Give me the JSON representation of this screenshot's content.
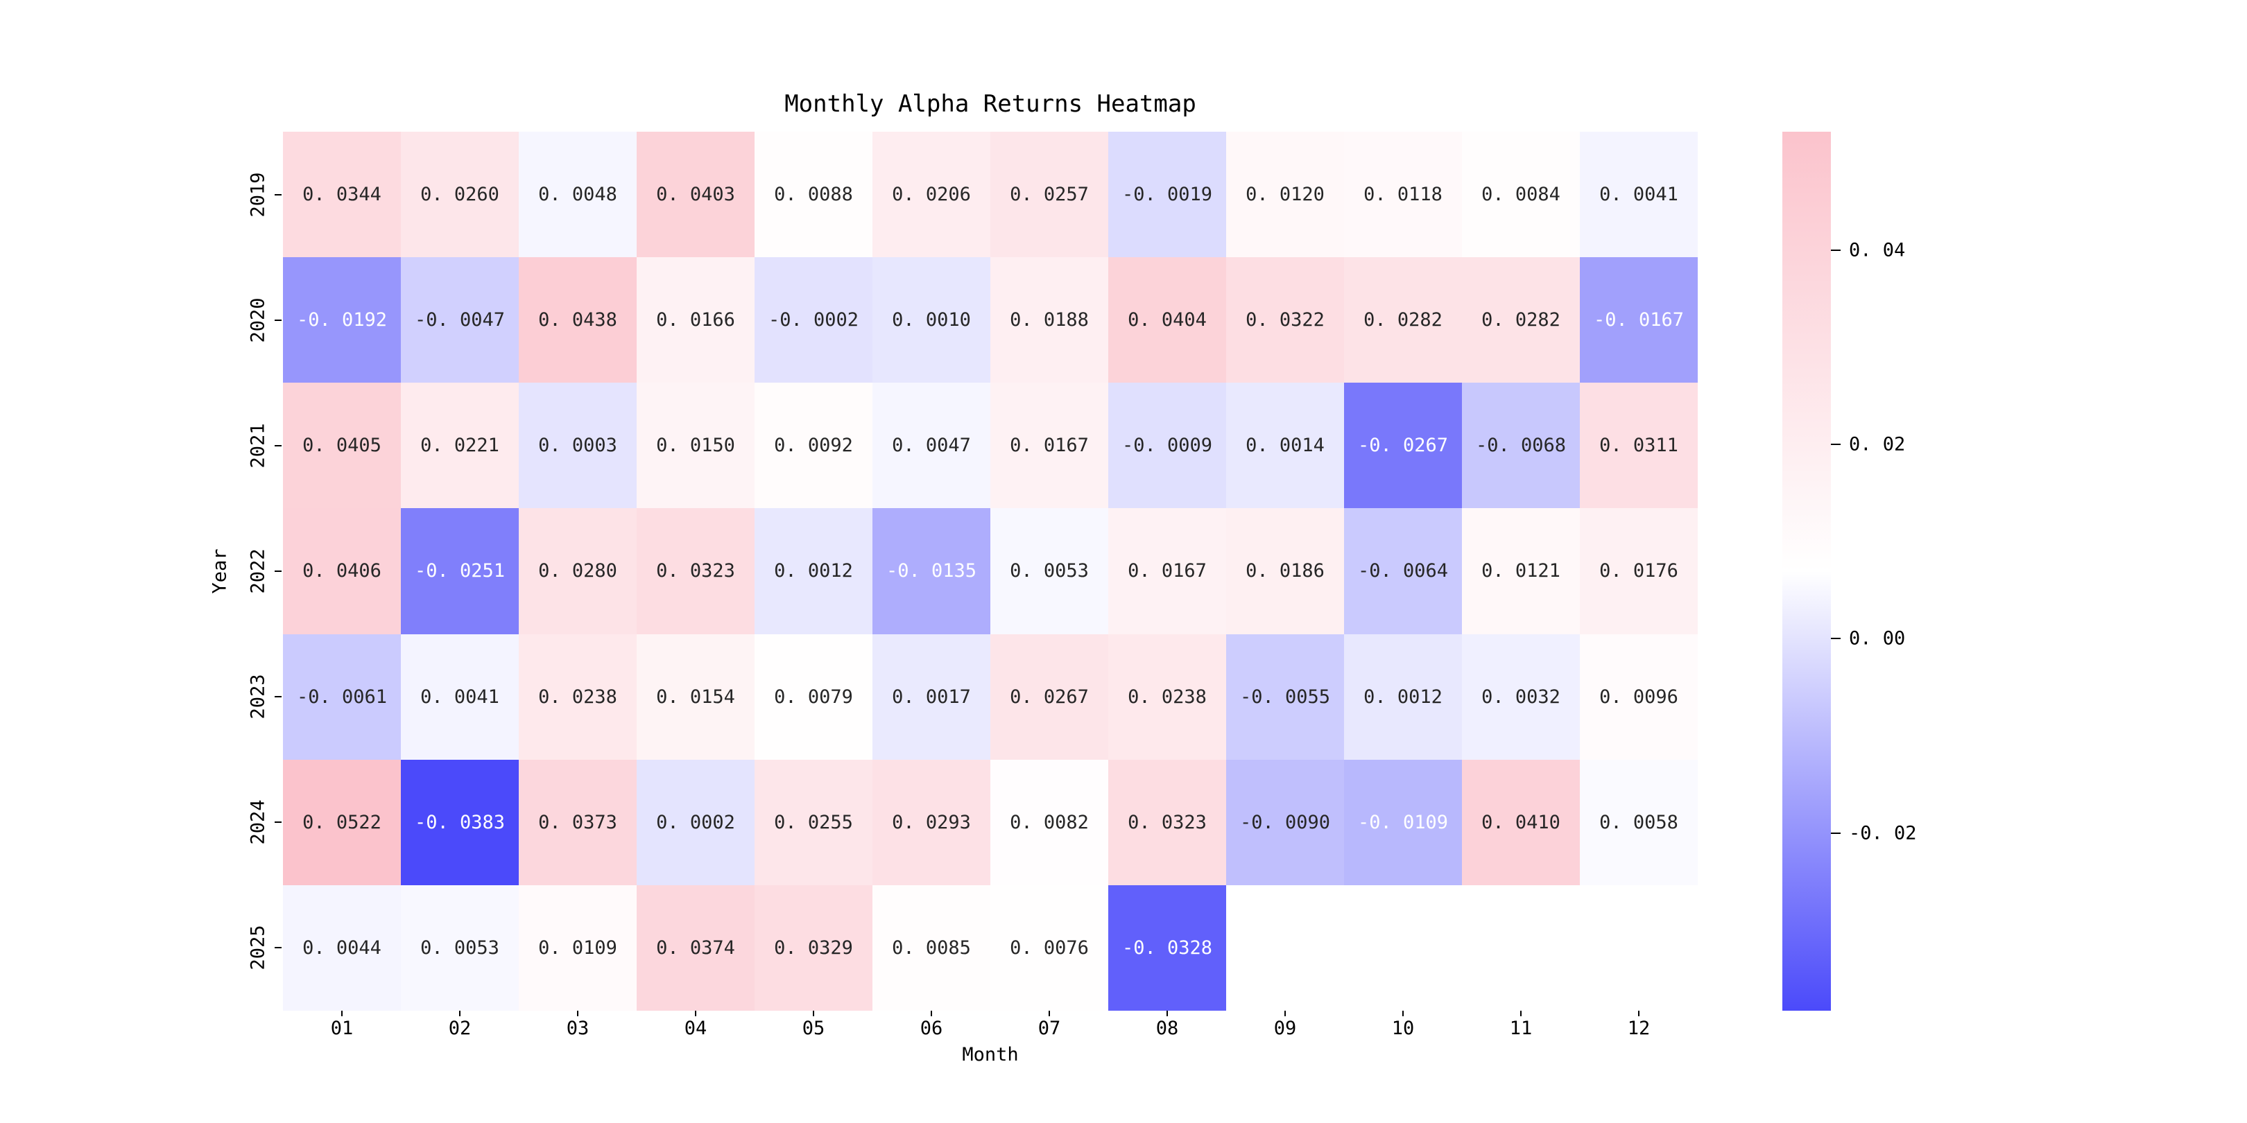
{
  "figure": {
    "title": "Monthly Alpha Returns Heatmap"
  },
  "chart_data": {
    "type": "heatmap",
    "title": "Monthly Alpha Returns Heatmap",
    "xlabel": "Month",
    "ylabel": "Year",
    "x_categories": [
      "01",
      "02",
      "03",
      "04",
      "05",
      "06",
      "07",
      "08",
      "09",
      "10",
      "11",
      "12"
    ],
    "y_categories": [
      "2019",
      "2020",
      "2021",
      "2022",
      "2023",
      "2024",
      "2025"
    ],
    "matrix": [
      [
        0.0344,
        0.026,
        0.0048,
        0.0403,
        0.0088,
        0.0206,
        0.0257,
        -0.0019,
        0.012,
        0.0118,
        0.0084,
        0.0041
      ],
      [
        -0.0192,
        -0.0047,
        0.0438,
        0.0166,
        -0.0002,
        0.001,
        0.0188,
        0.0404,
        0.0322,
        0.0282,
        0.0282,
        -0.0167
      ],
      [
        0.0405,
        0.0221,
        0.0003,
        0.015,
        0.0092,
        0.0047,
        0.0167,
        -0.0009,
        0.0014,
        -0.0267,
        -0.0068,
        0.0311
      ],
      [
        0.0406,
        -0.0251,
        0.028,
        0.0323,
        0.0012,
        -0.0135,
        0.0053,
        0.0167,
        0.0186,
        -0.0064,
        0.0121,
        0.0176
      ],
      [
        -0.0061,
        0.0041,
        0.0238,
        0.0154,
        0.0079,
        0.0017,
        0.0267,
        0.0238,
        -0.0055,
        0.0012,
        0.0032,
        0.0096
      ],
      [
        0.0522,
        -0.0383,
        0.0373,
        0.0002,
        0.0255,
        0.0293,
        0.0082,
        0.0323,
        -0.009,
        -0.0109,
        0.041,
        0.0058
      ],
      [
        0.0044,
        0.0053,
        0.0109,
        0.0374,
        0.0329,
        0.0085,
        0.0076,
        -0.0328,
        null,
        null,
        null,
        null
      ]
    ],
    "annot_decimals": 4,
    "vmin": -0.0383,
    "vmax": 0.0522,
    "center": 0.00695,
    "grid_on": false,
    "legend_position": "right-colorbar",
    "colorbar": {
      "ticks": [
        0.04,
        0.02,
        0.0,
        -0.02
      ],
      "tick_decimals": 2
    },
    "colors": {
      "negative_end_display": "#4B4AFA",
      "midpoint_display": "#FFFFFF",
      "positive_end_display": "#FBC3CC",
      "negative_end_true": "#0000FF",
      "midpoint_true": "#FFFFFF",
      "positive_end_true": "#FFC0CB",
      "annot_dark_text": "#262626",
      "annot_light_text": "#FFFFFF",
      "axis_text": "#000000",
      "background": "#FFFFFF"
    }
  }
}
